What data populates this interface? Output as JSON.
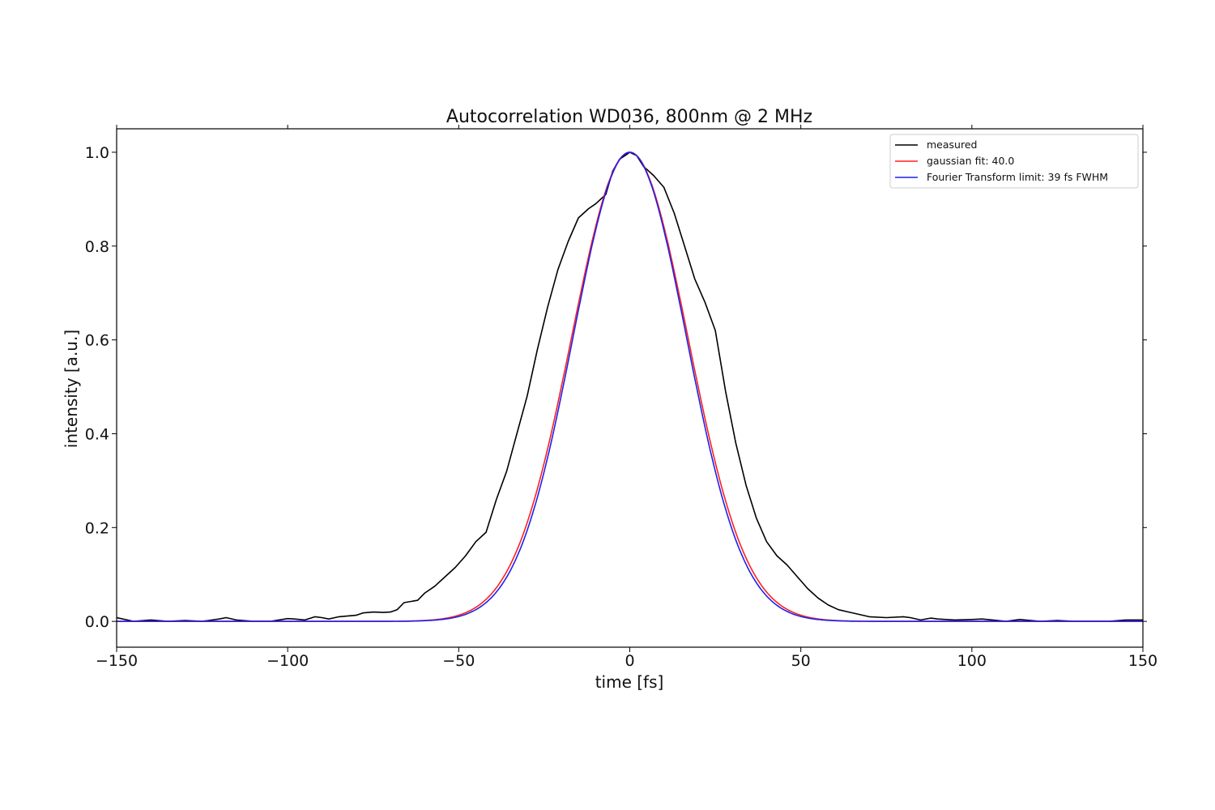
{
  "chart_data": {
    "type": "line",
    "title": "Autocorrelation WD036, 800nm @ 2 MHz",
    "xlabel": "time [fs]",
    "ylabel": "intensity [a.u.]",
    "xlim": [
      -150,
      150
    ],
    "ylim": [
      -0.055,
      1.05
    ],
    "xticks": [
      -150,
      -100,
      -50,
      0,
      50,
      100,
      150
    ],
    "xtick_labels": [
      "−150",
      "−100",
      "−50",
      "0",
      "50",
      "100",
      "150"
    ],
    "yticks": [
      0.0,
      0.2,
      0.4,
      0.6,
      0.8,
      1.0
    ],
    "ytick_labels": [
      "0.0",
      "0.2",
      "0.4",
      "0.6",
      "0.8",
      "1.0"
    ],
    "grid": false,
    "legend_position": "top-right",
    "series": [
      {
        "name": "measured",
        "color": "#000000",
        "x": [
          -150,
          -145,
          -140,
          -135,
          -130,
          -125,
          -120,
          -118,
          -115,
          -110,
          -105,
          -100,
          -98,
          -95,
          -92,
          -90,
          -88,
          -85,
          -80,
          -78,
          -75,
          -72,
          -70,
          -68,
          -66,
          -62,
          -60,
          -57,
          -54,
          -51,
          -48,
          -45,
          -42,
          -39,
          -36,
          -33,
          -30,
          -27,
          -24,
          -21,
          -18,
          -15,
          -12,
          -10,
          -7,
          -5,
          -3,
          -1,
          0,
          2,
          4,
          7,
          10,
          13,
          16,
          19,
          22,
          25,
          28,
          31,
          34,
          37,
          40,
          43,
          46,
          49,
          52,
          55,
          58,
          61,
          64,
          67,
          70,
          75,
          80,
          82,
          85,
          88,
          90,
          95,
          100,
          103,
          106,
          110,
          114,
          120,
          125,
          130,
          135,
          140,
          145,
          150
        ],
        "y": [
          0.008,
          0.0,
          0.003,
          0.0,
          0.002,
          0.0,
          0.005,
          0.008,
          0.003,
          0.0,
          0.0,
          0.006,
          0.005,
          0.003,
          0.01,
          0.008,
          0.005,
          0.01,
          0.013,
          0.018,
          0.02,
          0.019,
          0.02,
          0.025,
          0.04,
          0.045,
          0.06,
          0.075,
          0.095,
          0.115,
          0.14,
          0.17,
          0.19,
          0.26,
          0.32,
          0.4,
          0.48,
          0.58,
          0.67,
          0.75,
          0.81,
          0.86,
          0.88,
          0.89,
          0.91,
          0.96,
          0.985,
          0.995,
          1.0,
          0.993,
          0.97,
          0.95,
          0.925,
          0.87,
          0.8,
          0.73,
          0.68,
          0.62,
          0.49,
          0.38,
          0.29,
          0.22,
          0.17,
          0.14,
          0.12,
          0.095,
          0.07,
          0.05,
          0.035,
          0.025,
          0.02,
          0.015,
          0.01,
          0.008,
          0.01,
          0.008,
          0.003,
          0.007,
          0.005,
          0.003,
          0.004,
          0.005,
          0.003,
          0.0,
          0.004,
          0.0,
          0.002,
          0.0,
          0.0,
          0.0,
          0.003,
          0.003
        ]
      },
      {
        "name": "gaussian fit: 40.0",
        "color": "#ff2020",
        "function": "gaussian",
        "amplitude": 1.0,
        "center": 0,
        "fwhm": 40.0
      },
      {
        "name": "Fourier Transform limit: 39 fs FWHM",
        "color": "#2020ee",
        "function": "gaussian",
        "amplitude": 1.0,
        "center": 0,
        "fwhm": 39.0
      }
    ]
  }
}
